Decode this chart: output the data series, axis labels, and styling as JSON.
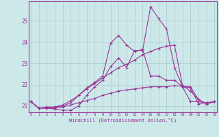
{
  "xlabel": "Windchill (Refroidissement éolien,°C)",
  "background_color": "#cce8e8",
  "line_color": "#993399",
  "grid_color": "#aacccc",
  "xmin": 0,
  "xmax": 23,
  "ymin": 20.7,
  "ymax": 25.9,
  "yticks": [
    21,
    22,
    23,
    24,
    25
  ],
  "series": [
    [
      21.2,
      20.9,
      20.9,
      20.85,
      20.8,
      20.8,
      21.0,
      21.5,
      21.9,
      22.2,
      22.85,
      23.25,
      22.8,
      23.6,
      23.6,
      25.65,
      25.1,
      24.6,
      22.8,
      21.9,
      21.85,
      21.1,
      21.15,
      21.2
    ],
    [
      21.2,
      20.9,
      20.95,
      20.95,
      21.0,
      21.15,
      21.5,
      21.85,
      22.1,
      22.4,
      23.95,
      24.3,
      23.85,
      23.55,
      23.65,
      22.4,
      22.4,
      22.2,
      22.2,
      21.9,
      21.2,
      21.2,
      21.15,
      21.2
    ],
    [
      21.2,
      20.9,
      20.9,
      20.95,
      21.05,
      21.25,
      21.5,
      21.8,
      22.05,
      22.3,
      22.55,
      22.8,
      22.95,
      23.15,
      23.4,
      23.55,
      23.7,
      23.8,
      23.85,
      21.95,
      21.7,
      21.3,
      21.1,
      21.2
    ],
    [
      21.2,
      20.9,
      20.9,
      20.9,
      20.95,
      21.05,
      21.15,
      21.25,
      21.35,
      21.5,
      21.6,
      21.7,
      21.75,
      21.8,
      21.85,
      21.9,
      21.9,
      21.9,
      21.95,
      21.92,
      21.9,
      21.3,
      21.1,
      21.2
    ]
  ]
}
